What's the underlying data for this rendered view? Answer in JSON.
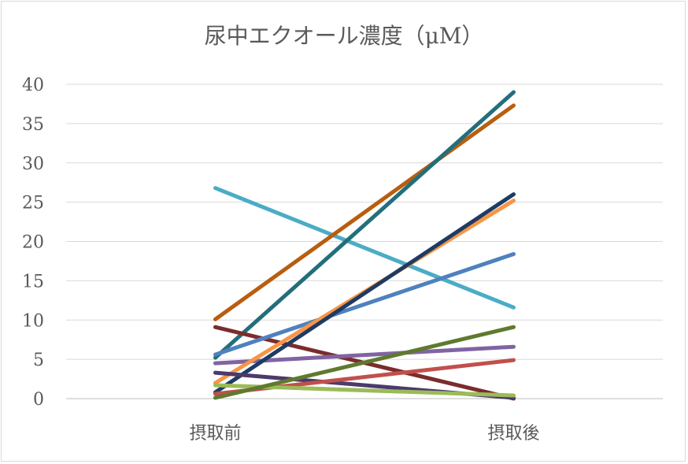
{
  "chart_data": {
    "type": "line",
    "title": "尿中エクオール濃度（μM）",
    "xlabel": "",
    "ylabel": "",
    "categories": [
      "摂取前",
      "摂取後"
    ],
    "ylim": [
      0,
      40
    ],
    "yticks": [
      0,
      5,
      10,
      15,
      20,
      25,
      30,
      35,
      40
    ],
    "grid": true,
    "legend": "none",
    "series": [
      {
        "values": [
          26.8,
          11.6
        ],
        "color": "#4bacc6"
      },
      {
        "values": [
          10.1,
          37.3
        ],
        "color": "#b85e0f"
      },
      {
        "values": [
          5.2,
          39.0
        ],
        "color": "#236e7c"
      },
      {
        "values": [
          9.1,
          0.0
        ],
        "color": "#7b2c2c"
      },
      {
        "values": [
          5.6,
          18.4
        ],
        "color": "#4f81bd"
      },
      {
        "values": [
          4.5,
          6.6
        ],
        "color": "#8064a2"
      },
      {
        "values": [
          2.0,
          25.2
        ],
        "color": "#f79646"
      },
      {
        "values": [
          0.8,
          26.0
        ],
        "color": "#1f3b63"
      },
      {
        "values": [
          3.3,
          0.1
        ],
        "color": "#4b3a6b"
      },
      {
        "values": [
          0.6,
          4.9
        ],
        "color": "#c0504d"
      },
      {
        "values": [
          1.7,
          0.4
        ],
        "color": "#9bbb59"
      },
      {
        "values": [
          0.1,
          9.1
        ],
        "color": "#5f7a2e"
      }
    ]
  }
}
